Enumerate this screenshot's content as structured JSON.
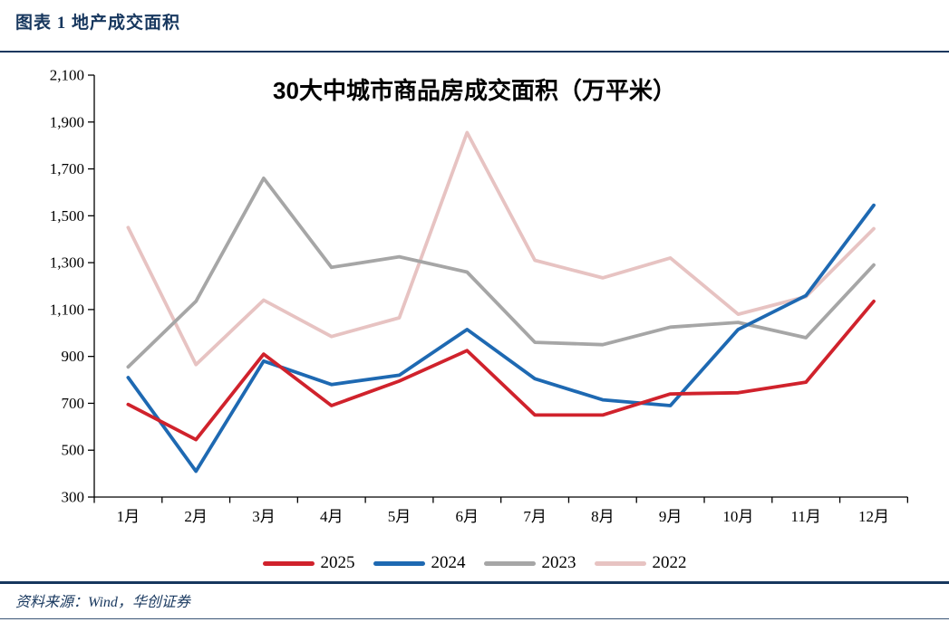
{
  "header": {
    "caption": "图表 1  地产成交面积"
  },
  "chart_data": {
    "type": "line",
    "title": "30大中城市商品房成交面积（万平米）",
    "categories": [
      "1月",
      "2月",
      "3月",
      "4月",
      "5月",
      "6月",
      "7月",
      "8月",
      "9月",
      "10月",
      "11月",
      "12月"
    ],
    "series": [
      {
        "name": "2025",
        "color": "#d0222c",
        "values": [
          695,
          545,
          910,
          690,
          795,
          925,
          650,
          650,
          740,
          745,
          790,
          1135
        ]
      },
      {
        "name": "2024",
        "color": "#1e69b2",
        "values": [
          810,
          410,
          880,
          780,
          820,
          1015,
          805,
          715,
          690,
          1015,
          1160,
          1545
        ]
      },
      {
        "name": "2023",
        "color": "#a6a6a6",
        "values": [
          855,
          1135,
          1660,
          1280,
          1325,
          1260,
          960,
          950,
          1025,
          1045,
          980,
          1290
        ]
      },
      {
        "name": "2022",
        "color": "#e7c3c2",
        "values": [
          1450,
          865,
          1140,
          985,
          1065,
          1855,
          1310,
          1235,
          1320,
          1080,
          1155,
          1445
        ]
      }
    ],
    "ylim": [
      300,
      2100
    ],
    "ytick_step": 200,
    "xlabel": "",
    "ylabel": "",
    "grid": false,
    "legend_position": "bottom"
  },
  "footer": {
    "source": "资料来源：Wind，华创证券"
  },
  "colors": {
    "accent": "#17375e",
    "axis": "#000000"
  }
}
